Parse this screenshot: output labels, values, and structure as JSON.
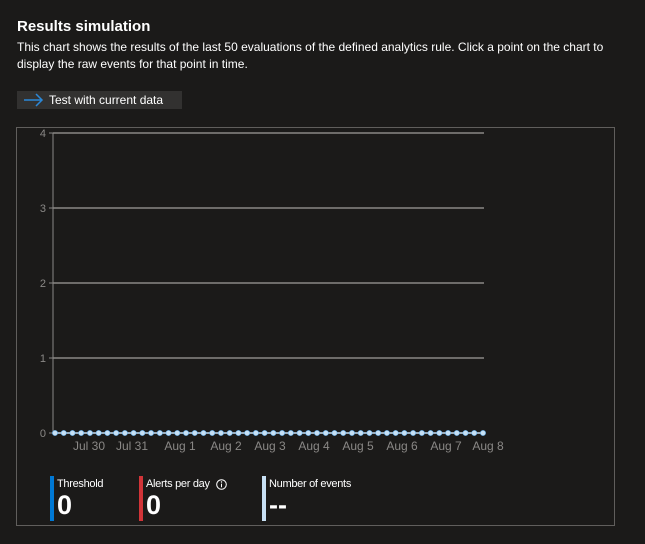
{
  "header": {
    "title": "Results simulation",
    "description": "This chart shows the results of the last 50 evaluations of the defined analytics rule. Click a point on the chart to display the raw events for that point in time."
  },
  "toolbar": {
    "test_label": "Test with current data",
    "test_icon": "arrow-right-icon"
  },
  "chart_data": {
    "type": "line",
    "x_tick_labels": [
      "Jul 30",
      "Jul 31",
      "Aug 1",
      "Aug 2",
      "Aug 3",
      "Aug 4",
      "Aug 5",
      "Aug 6",
      "Aug 7",
      "Aug 8"
    ],
    "y_tick_labels": [
      "0",
      "1",
      "2",
      "3",
      "4"
    ],
    "ylim": [
      0,
      4
    ],
    "grid": true,
    "series": [
      {
        "values": [
          0,
          0,
          0,
          0,
          0,
          0,
          0,
          0,
          0,
          0,
          0,
          0,
          0,
          0,
          0,
          0,
          0,
          0,
          0,
          0,
          0,
          0,
          0,
          0,
          0,
          0,
          0,
          0,
          0,
          0,
          0,
          0,
          0,
          0,
          0,
          0,
          0,
          0,
          0,
          0,
          0,
          0,
          0,
          0,
          0,
          0,
          0,
          0,
          0,
          0
        ]
      }
    ],
    "point_color": "#c7e0f4",
    "grid_color": "#8a8886"
  },
  "legend": {
    "threshold": {
      "label": "Threshold",
      "value": "0",
      "color": "#0078d4"
    },
    "alerts_per_day": {
      "label": "Alerts per day",
      "value": "0",
      "color": "#d13438",
      "icon": "info-icon"
    },
    "number_of_events": {
      "label": "Number of events",
      "value": "--",
      "color": "#c7e0f4"
    }
  }
}
